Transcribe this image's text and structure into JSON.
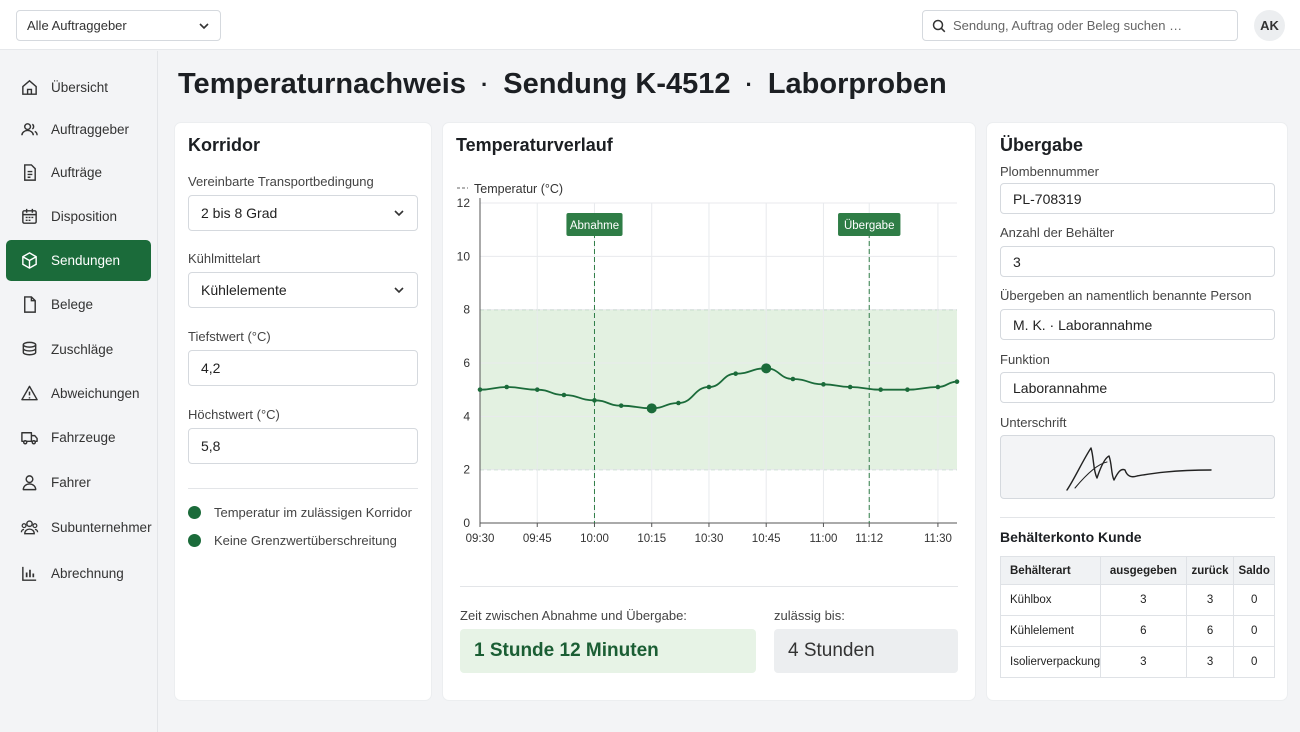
{
  "topbar": {
    "client_select": "Alle Auftraggeber",
    "search_placeholder": "Sendung, Auftrag oder Beleg suchen …",
    "avatar": "AK"
  },
  "sidebar": {
    "items": [
      {
        "label": "Übersicht",
        "icon": "home-icon"
      },
      {
        "label": "Auftraggeber",
        "icon": "users-icon"
      },
      {
        "label": "Aufträge",
        "icon": "document-icon"
      },
      {
        "label": "Disposition",
        "icon": "calendar-icon"
      },
      {
        "label": "Sendungen",
        "icon": "package-icon",
        "active": true
      },
      {
        "label": "Belege",
        "icon": "file-icon"
      },
      {
        "label": "Zuschläge",
        "icon": "coins-icon"
      },
      {
        "label": "Abweichungen",
        "icon": "warning-icon"
      },
      {
        "label": "Fahrzeuge",
        "icon": "truck-icon"
      },
      {
        "label": "Fahrer",
        "icon": "user-icon"
      },
      {
        "label": "Subunternehmer",
        "icon": "group-icon"
      },
      {
        "label": "Abrechnung",
        "icon": "bar-chart-icon"
      }
    ]
  },
  "header": {
    "title_parts": [
      "Temperaturnachweis",
      "Sendung K-4512",
      "Laborproben"
    ],
    "separator": "·"
  },
  "korridor": {
    "title": "Korridor",
    "condition_label": "Vereinbarte Transportbedingung",
    "condition_value": "2 bis 8 Grad",
    "coolant_label": "Kühlmittelart",
    "coolant_value": "Kühlelemente",
    "min_label": "Tiefstwert (°C)",
    "min_value": "4,2",
    "max_label": "Höchstwert (°C)",
    "max_value": "5,8",
    "status": [
      "Temperatur im zulässigen Korridor",
      "Keine Grenzwertüberschreitung"
    ],
    "status_color": "#1b6b3a"
  },
  "verlauf": {
    "title": "Temperaturverlauf",
    "duration_label": "Zeit zwischen Abnahme und Übergabe:",
    "duration_value": "1 Stunde 12 Minuten",
    "allowed_label": "zulässig bis:",
    "allowed_value": "4 Stunden"
  },
  "chart_data": {
    "type": "line",
    "legend": "Temperatur (°C)",
    "x_ticks": [
      "09:30",
      "09:45",
      "10:00",
      "10:15",
      "10:30",
      "10:45",
      "11:00",
      "11:12",
      "11:30"
    ],
    "x_range_minutes": [
      "09:30",
      "11:35"
    ],
    "ylim": [
      0,
      12
    ],
    "y_ticks": [
      0,
      2,
      4,
      6,
      8,
      10,
      12
    ],
    "band": [
      2,
      8
    ],
    "band_color": "#e3f1e1",
    "line_color": "#1b6b3a",
    "grid": true,
    "series": [
      {
        "x": [
          "09:30",
          "09:37",
          "09:45",
          "09:52",
          "10:00",
          "10:07",
          "10:15",
          "10:22",
          "10:30",
          "10:37",
          "10:45",
          "10:52",
          "11:00",
          "11:07",
          "11:15",
          "11:22",
          "11:30",
          "11:35"
        ],
        "y": [
          5.0,
          5.1,
          5.0,
          4.8,
          4.6,
          4.4,
          4.3,
          4.5,
          5.1,
          5.6,
          5.8,
          5.4,
          5.2,
          5.1,
          5.0,
          5.0,
          5.1,
          5.3
        ],
        "highlight": [
          "10:15",
          "10:45"
        ]
      }
    ],
    "markers": [
      {
        "x": "10:00",
        "label": "Abnahme"
      },
      {
        "x": "11:12",
        "label": "Übergabe"
      }
    ]
  },
  "uebergabe": {
    "title": "Übergabe",
    "seal_label": "Plombennummer",
    "seal_value": "PL-708319",
    "count_label": "Anzahl der Behälter",
    "count_value": "3",
    "person_label": "Übergeben an namentlich benannte Person",
    "person_value": "M. K. · Laborannahme",
    "function_label": "Funktion",
    "function_value": "Laborannahme",
    "signature_label": "Unterschrift",
    "account_title": "Behälterkonto Kunde",
    "table": {
      "headers": [
        "Behälterart",
        "ausgegeben",
        "zurück",
        "Saldo"
      ],
      "rows": [
        [
          "Kühlbox",
          "3",
          "3",
          "0"
        ],
        [
          "Kühlelement",
          "6",
          "6",
          "0"
        ],
        [
          "Isolierverpackung",
          "3",
          "3",
          "0"
        ]
      ]
    }
  }
}
